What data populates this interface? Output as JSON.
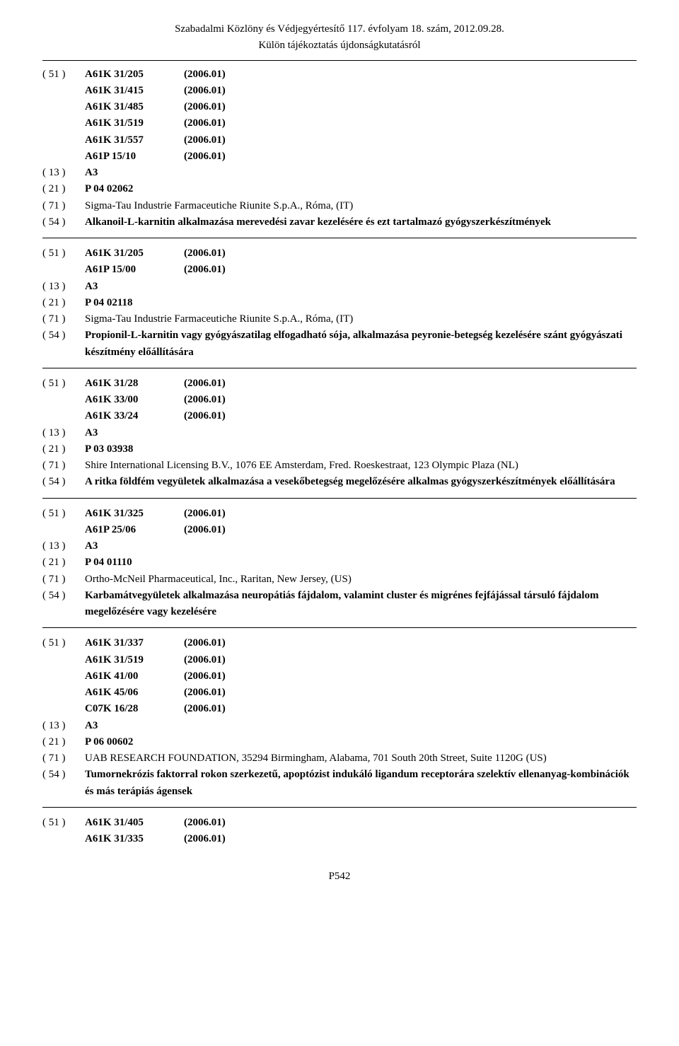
{
  "header": {
    "line1": "Szabadalmi Közlöny és Védjegyértesítő 117. évfolyam 18. szám, 2012.09.28.",
    "line2": "Külön tájékoztatás újdonságkutatásról"
  },
  "entries": [
    {
      "classifications": [
        {
          "code51": "( 51 )",
          "cls": "A61K 31/205",
          "year": "(2006.01)"
        },
        {
          "code51": "",
          "cls": "A61K 31/415",
          "year": "(2006.01)"
        },
        {
          "code51": "",
          "cls": "A61K 31/485",
          "year": "(2006.01)"
        },
        {
          "code51": "",
          "cls": "A61K 31/519",
          "year": "(2006.01)"
        },
        {
          "code51": "",
          "cls": "A61K 31/557",
          "year": "(2006.01)"
        },
        {
          "code51": "",
          "cls": "A61P 15/10",
          "year": "(2006.01)"
        }
      ],
      "c13": {
        "code": "( 13 )",
        "value": "A3"
      },
      "c21": {
        "code": "( 21 )",
        "value": "P 04 02062"
      },
      "c71": {
        "code": "( 71 )",
        "value": "Sigma-Tau Industrie Farmaceutiche Riunite S.p.A., Róma, (IT)"
      },
      "c54": {
        "code": "( 54 )",
        "value": "Alkanoil-L-karnitin alkalmazása merevedési zavar kezelésére és ezt tartalmazó gyógyszerkészítmények"
      }
    },
    {
      "classifications": [
        {
          "code51": "( 51 )",
          "cls": "A61K 31/205",
          "year": "(2006.01)"
        },
        {
          "code51": "",
          "cls": "A61P 15/00",
          "year": "(2006.01)"
        }
      ],
      "c13": {
        "code": "( 13 )",
        "value": "A3"
      },
      "c21": {
        "code": "( 21 )",
        "value": "P 04 02118"
      },
      "c71": {
        "code": "( 71 )",
        "value": "Sigma-Tau Industrie Farmaceutiche Riunite S.p.A., Róma, (IT)"
      },
      "c54": {
        "code": "( 54 )",
        "value": "Propionil-L-karnitin vagy gyógyászatilag elfogadható sója, alkalmazása peyronie-betegség kezelésére szánt gyógyászati készítmény előállítására"
      }
    },
    {
      "classifications": [
        {
          "code51": "( 51 )",
          "cls": "A61K 31/28",
          "year": "(2006.01)"
        },
        {
          "code51": "",
          "cls": "A61K 33/00",
          "year": "(2006.01)"
        },
        {
          "code51": "",
          "cls": "A61K 33/24",
          "year": "(2006.01)"
        }
      ],
      "c13": {
        "code": "( 13 )",
        "value": "A3"
      },
      "c21": {
        "code": "( 21 )",
        "value": "P 03 03938"
      },
      "c71": {
        "code": "( 71 )",
        "value": "Shire International Licensing B.V., 1076 EE Amsterdam, Fred. Roeskestraat, 123 Olympic Plaza (NL)"
      },
      "c54": {
        "code": "( 54 )",
        "value": "A ritka földfém vegyületek alkalmazása a vesekőbetegség megelőzésére alkalmas gyógyszerkészítmények előállítására"
      }
    },
    {
      "classifications": [
        {
          "code51": "( 51 )",
          "cls": "A61K 31/325",
          "year": "(2006.01)"
        },
        {
          "code51": "",
          "cls": "A61P 25/06",
          "year": "(2006.01)"
        }
      ],
      "c13": {
        "code": "( 13 )",
        "value": "A3"
      },
      "c21": {
        "code": "( 21 )",
        "value": "P 04 01110"
      },
      "c71": {
        "code": "( 71 )",
        "value": "Ortho-McNeil Pharmaceutical, Inc., Raritan, New Jersey, (US)"
      },
      "c54": {
        "code": "( 54 )",
        "value": "Karbamátvegyületek alkalmazása neuropátiás fájdalom, valamint cluster és migrénes fejfájással társuló fájdalom megelőzésére vagy kezelésére"
      }
    },
    {
      "classifications": [
        {
          "code51": "( 51 )",
          "cls": "A61K 31/337",
          "year": "(2006.01)"
        },
        {
          "code51": "",
          "cls": "A61K 31/519",
          "year": "(2006.01)"
        },
        {
          "code51": "",
          "cls": "A61K 41/00",
          "year": "(2006.01)"
        },
        {
          "code51": "",
          "cls": "A61K 45/06",
          "year": "(2006.01)"
        },
        {
          "code51": "",
          "cls": "C07K 16/28",
          "year": "(2006.01)"
        }
      ],
      "c13": {
        "code": "( 13 )",
        "value": "A3"
      },
      "c21": {
        "code": "( 21 )",
        "value": "P 06 00602"
      },
      "c71": {
        "code": "( 71 )",
        "value": "UAB RESEARCH FOUNDATION, 35294 Birmingham, Alabama, 701 South 20th Street, Suite 1120G (US)"
      },
      "c54": {
        "code": "( 54 )",
        "value": "Tumornekrózis faktorral rokon szerkezetű, apoptózist indukáló ligandum receptorára szelektív ellenanyag-kombinációk és más terápiás ágensek"
      }
    },
    {
      "classifications": [
        {
          "code51": "( 51 )",
          "cls": "A61K 31/405",
          "year": "(2006.01)"
        },
        {
          "code51": "",
          "cls": "A61K 31/335",
          "year": "(2006.01)"
        }
      ]
    }
  ],
  "pagenum": "P542"
}
